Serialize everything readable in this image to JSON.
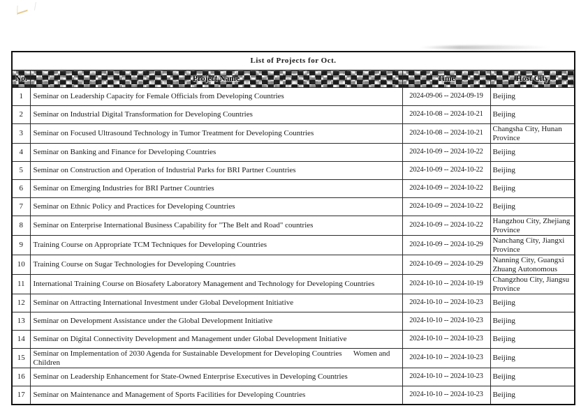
{
  "page": {
    "title": "List of Projects for Oct."
  },
  "colors": {
    "ink": "#1a1a1a",
    "highlight_mark": "#d0a23a",
    "header_checker_dark": "#0a0a0a",
    "header_checker_light": "#f1f1f1"
  },
  "icons": {
    "top_left_mark": "yellow-pencil-scribble",
    "top_edge_mark": "gray-scan-smudge"
  },
  "table": {
    "headers": [
      "No.",
      "Project Name",
      "Time",
      "Host City"
    ],
    "rows": [
      {
        "no": "1",
        "name": "Seminar on Leadership Capacity for Female Officials from Developing Countries",
        "time": "2024-09-06 -- 2024-09-19",
        "city": "Beijing"
      },
      {
        "no": "2",
        "name": "Seminar on Industrial Digital Transformation for Developing Countries",
        "time": "2024-10-08 -- 2024-10-21",
        "city": "Beijing"
      },
      {
        "no": "3",
        "name": "Seminar on Focused Ultrasound Technology in Tumor Treatment for Developing Countries",
        "time": "2024-10-08 -- 2024-10-21",
        "city": "Changsha City, Hunan Province"
      },
      {
        "no": "4",
        "name": "Seminar on Banking and Finance for Developing Countries",
        "time": "2024-10-09 -- 2024-10-22",
        "city": "Beijing"
      },
      {
        "no": "5",
        "name": "Seminar on Construction and Operation of Industrial Parks for BRI Partner Countries",
        "time": "2024-10-09 -- 2024-10-22",
        "city": "Beijing"
      },
      {
        "no": "6",
        "name": "Seminar on Emerging Industries for BRI Partner Countries",
        "time": "2024-10-09 -- 2024-10-22",
        "city": "Beijing"
      },
      {
        "no": "7",
        "name": "Seminar on Ethnic Policy and Practices for Developing Countries",
        "time": "2024-10-09 -- 2024-10-22",
        "city": "Beijing"
      },
      {
        "no": "8",
        "name": "Seminar on Enterprise International Business Capability for \"The Belt and Road\" countries",
        "time": "2024-10-09 -- 2024-10-22",
        "city": "Hangzhou City, Zhejiang Province"
      },
      {
        "no": "9",
        "name": "Training Course on Appropriate TCM Techniques for Developing Countries",
        "time": "2024-10-09 -- 2024-10-29",
        "city": "Nanchang City, Jiangxi Province"
      },
      {
        "no": "10",
        "name": "Training Course on Sugar Technologies for Developing Countries",
        "time": "2024-10-09 -- 2024-10-29",
        "city": "Nanning City, Guangxi Zhuang Autonomous"
      },
      {
        "no": "11",
        "name": "International Training Course on Biosafety Laboratory Management and Technology for Developing Countries",
        "time": "2024-10-10 -- 2024-10-19",
        "city": "Changzhou City, Jiangsu Province"
      },
      {
        "no": "12",
        "name": "Seminar on Attracting International Investment under Global Development Initiative",
        "time": "2024-10-10 -- 2024-10-23",
        "city": "Beijing"
      },
      {
        "no": "13",
        "name": "Seminar on Development Assistance under the Global Development Initiative",
        "time": "2024-10-10 -- 2024-10-23",
        "city": "Beijing"
      },
      {
        "no": "14",
        "name": "Seminar on Digital Connectivity Development and Management under Global Development Initiative",
        "time": "2024-10-10 -- 2024-10-23",
        "city": "Beijing"
      },
      {
        "no": "15",
        "name": "Seminar on Implementation of 2030 Agenda for Sustainable Development for Developing Countries      Women and Children",
        "time": "2024-10-10 -- 2024-10-23",
        "city": "Beijing"
      },
      {
        "no": "16",
        "name": "Seminar on Leadership Enhancement for State-Owned Enterprise Executives in Developing Countries",
        "time": "2024-10-10 -- 2024-10-23",
        "city": "Beijing"
      },
      {
        "no": "17",
        "name": "Seminar on Maintenance and Management of Sports Facilities for Developing Countries",
        "time": "2024-10-10 -- 2024-10-23",
        "city": "Beijing"
      }
    ]
  }
}
